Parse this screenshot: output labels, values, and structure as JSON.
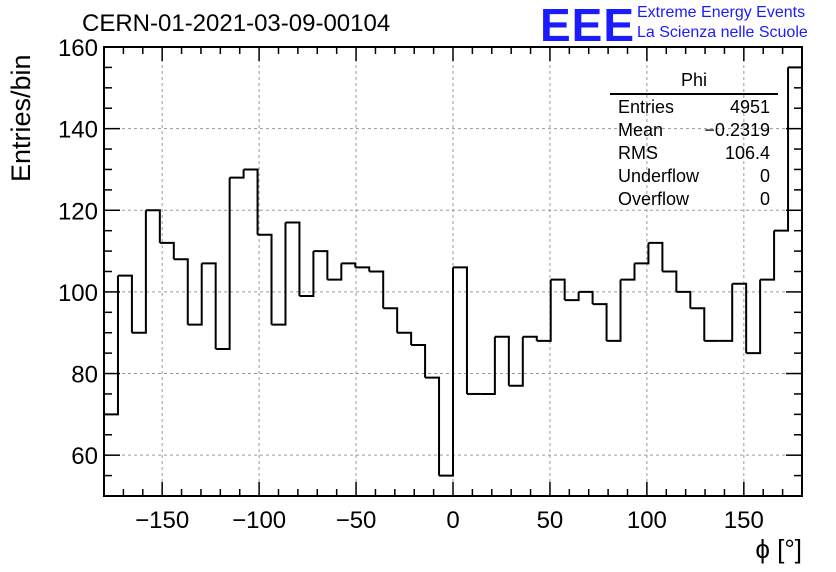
{
  "header": {
    "title": "CERN-01-2021-03-09-00104",
    "logo_text": "EEE",
    "logo_line1": "Extreme Energy Events",
    "logo_line2": "La Scienza nelle Scuole"
  },
  "stats_box": {
    "title": "Phi",
    "rows": [
      {
        "label": "Entries",
        "value": "4951"
      },
      {
        "label": "Mean",
        "value": "−0.2319"
      },
      {
        "label": "RMS",
        "value": "106.4"
      },
      {
        "label": "Underflow",
        "value": "0"
      },
      {
        "label": "Overflow",
        "value": "0"
      }
    ]
  },
  "chart_data": {
    "type": "bar",
    "title": "CERN-01-2021-03-09-00104",
    "xlabel": "ϕ [°]",
    "ylabel": "Entries/bin",
    "xlim": [
      -180,
      180
    ],
    "ylim": [
      50,
      160
    ],
    "bin_width": 7.2,
    "xticks": [
      -150,
      -100,
      -50,
      0,
      50,
      100,
      150
    ],
    "xtick_labels": [
      "−150",
      "−100",
      "−50",
      "0",
      "50",
      "100",
      "150"
    ],
    "yticks": [
      60,
      80,
      100,
      120,
      140,
      160
    ],
    "grid": true,
    "values": [
      70,
      104,
      90,
      120,
      112,
      108,
      92,
      107,
      86,
      128,
      130,
      114,
      92,
      117,
      99,
      110,
      103,
      107,
      106,
      105,
      96,
      90,
      87,
      79,
      55,
      106,
      75,
      75,
      89,
      77,
      89,
      88,
      103,
      98,
      100,
      97,
      88,
      103,
      107,
      112,
      105,
      100,
      96,
      88,
      88,
      102,
      85,
      103,
      115,
      155
    ]
  },
  "colors": {
    "histogram": "#000000",
    "grid": "#9a9a9a",
    "logo": "#1b1bff"
  }
}
